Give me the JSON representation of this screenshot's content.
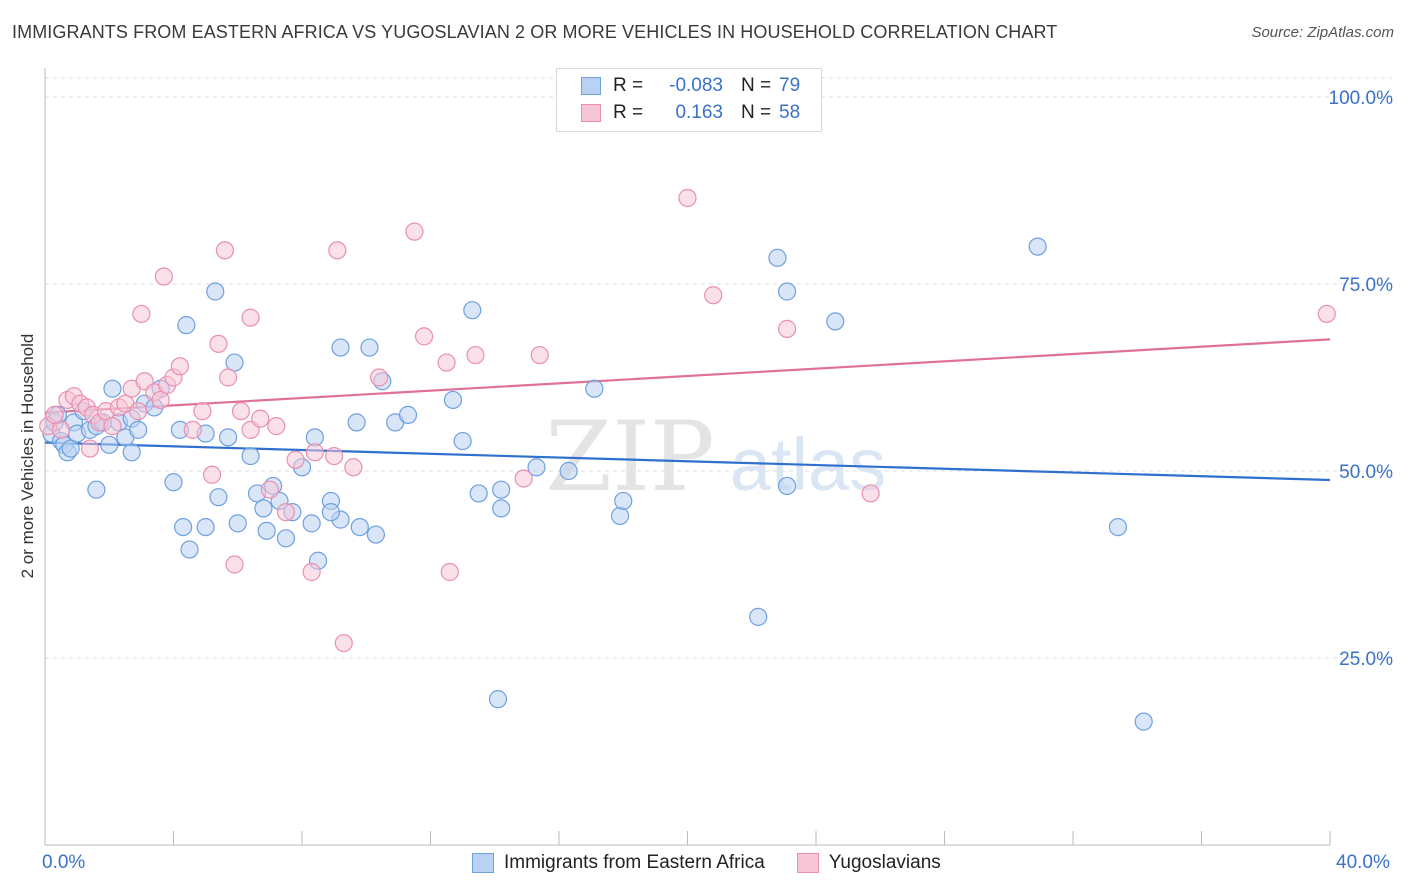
{
  "title": "IMMIGRANTS FROM EASTERN AFRICA VS YUGOSLAVIAN 2 OR MORE VEHICLES IN HOUSEHOLD CORRELATION CHART",
  "source": "Source: ZipAtlas.com",
  "watermark": {
    "zip": "ZIP",
    "atlas": "atlas"
  },
  "legend": {
    "rows": [
      {
        "r_label": "R =",
        "r_value": "-0.083",
        "n_label": "N =",
        "n_value": "79",
        "color": "#6fa0e0"
      },
      {
        "r_label": "R =",
        "r_value": "0.163",
        "n_label": "N =",
        "n_value": "58",
        "color": "#ea8fb0"
      }
    ]
  },
  "bottom_legend": {
    "series1": "Immigrants from Eastern Africa",
    "series2": "Yugoslavians"
  },
  "x_axis": {
    "min_label": "0.0%",
    "max_label": "40.0%"
  },
  "chart_data": {
    "type": "scatter",
    "title": "IMMIGRANTS FROM EASTERN AFRICA VS YUGOSLAVIAN 2 OR MORE VEHICLES IN HOUSEHOLD CORRELATION CHART",
    "xlabel": "",
    "ylabel": "2 or more Vehicles in Household",
    "xlim": [
      0,
      40
    ],
    "ylim": [
      0,
      105
    ],
    "yticks": [
      25,
      50,
      75,
      100
    ],
    "ytick_labels": [
      "25.0%",
      "50.0%",
      "75.0%",
      "100.0%"
    ],
    "grid": "horizontal dashed",
    "series": [
      {
        "name": "Immigrants from Eastern Africa",
        "color": "#6fa0e0",
        "fill": "#b9d1f3",
        "trend": {
          "x": [
            0,
            40
          ],
          "y": [
            53.8,
            48.8
          ]
        },
        "points": [
          [
            0.2,
            55.0
          ],
          [
            0.3,
            56.5
          ],
          [
            0.4,
            57.5
          ],
          [
            0.5,
            54.0
          ],
          [
            0.6,
            53.5
          ],
          [
            0.7,
            52.5
          ],
          [
            0.9,
            56.5
          ],
          [
            1.0,
            55.0
          ],
          [
            1.2,
            58.0
          ],
          [
            1.4,
            55.5
          ],
          [
            1.6,
            56.0
          ],
          [
            1.8,
            56.5
          ],
          [
            2.0,
            53.5
          ],
          [
            2.1,
            61.0
          ],
          [
            2.3,
            56.5
          ],
          [
            2.5,
            54.5
          ],
          [
            2.7,
            57.0
          ],
          [
            2.9,
            55.5
          ],
          [
            3.1,
            59.0
          ],
          [
            3.4,
            58.5
          ],
          [
            3.6,
            61.0
          ],
          [
            4.4,
            69.5
          ],
          [
            5.3,
            74.0
          ],
          [
            4.2,
            55.5
          ],
          [
            5.0,
            55.0
          ],
          [
            5.7,
            54.5
          ],
          [
            5.9,
            64.5
          ],
          [
            6.4,
            52.0
          ],
          [
            6.6,
            47.0
          ],
          [
            6.8,
            45.0
          ],
          [
            7.1,
            48.0
          ],
          [
            7.3,
            46.0
          ],
          [
            7.7,
            44.5
          ],
          [
            8.0,
            50.5
          ],
          [
            8.4,
            54.5
          ],
          [
            8.9,
            46.0
          ],
          [
            9.2,
            66.5
          ],
          [
            9.7,
            56.5
          ],
          [
            10.1,
            66.5
          ],
          [
            10.5,
            62.0
          ],
          [
            10.9,
            56.5
          ],
          [
            11.3,
            57.5
          ],
          [
            13.0,
            54.0
          ],
          [
            13.3,
            71.5
          ],
          [
            13.5,
            47.0
          ],
          [
            14.2,
            47.5
          ],
          [
            14.2,
            45.0
          ],
          [
            15.3,
            50.5
          ],
          [
            16.3,
            50.0
          ],
          [
            17.1,
            61.0
          ],
          [
            17.9,
            44.0
          ],
          [
            18.0,
            46.0
          ],
          [
            12.7,
            59.5
          ],
          [
            4.0,
            48.5
          ],
          [
            4.3,
            42.5
          ],
          [
            4.5,
            39.5
          ],
          [
            5.0,
            42.5
          ],
          [
            5.4,
            46.5
          ],
          [
            6.0,
            43.0
          ],
          [
            6.9,
            42.0
          ],
          [
            7.5,
            41.0
          ],
          [
            8.3,
            43.0
          ],
          [
            8.5,
            38.0
          ],
          [
            9.2,
            43.5
          ],
          [
            9.8,
            42.5
          ],
          [
            10.3,
            41.5
          ],
          [
            1.6,
            47.5
          ],
          [
            22.8,
            78.5
          ],
          [
            23.1,
            74.0
          ],
          [
            24.6,
            70.0
          ],
          [
            30.9,
            80.0
          ],
          [
            23.1,
            48.0
          ],
          [
            22.2,
            30.5
          ],
          [
            33.4,
            42.5
          ],
          [
            14.1,
            19.5
          ],
          [
            34.2,
            16.5
          ],
          [
            0.8,
            53.0
          ],
          [
            2.7,
            52.5
          ],
          [
            8.9,
            44.5
          ]
        ]
      },
      {
        "name": "Yugoslavians",
        "color": "#ea8fb0",
        "fill": "#f6c6d7",
        "trend": {
          "x": [
            0,
            40
          ],
          "y": [
            57.8,
            67.6
          ]
        },
        "points": [
          [
            0.1,
            56.0
          ],
          [
            0.3,
            57.5
          ],
          [
            0.5,
            55.5
          ],
          [
            0.7,
            59.5
          ],
          [
            0.9,
            60.0
          ],
          [
            1.1,
            59.0
          ],
          [
            1.3,
            58.5
          ],
          [
            1.5,
            57.5
          ],
          [
            1.7,
            56.5
          ],
          [
            1.9,
            58.0
          ],
          [
            2.1,
            56.0
          ],
          [
            2.3,
            58.5
          ],
          [
            2.5,
            59.0
          ],
          [
            2.7,
            61.0
          ],
          [
            2.9,
            58.0
          ],
          [
            3.1,
            62.0
          ],
          [
            3.4,
            60.5
          ],
          [
            3.6,
            59.5
          ],
          [
            3.8,
            61.5
          ],
          [
            4.0,
            62.5
          ],
          [
            4.2,
            64.0
          ],
          [
            4.6,
            55.5
          ],
          [
            4.9,
            58.0
          ],
          [
            5.4,
            67.0
          ],
          [
            5.7,
            62.5
          ],
          [
            6.1,
            58.0
          ],
          [
            6.4,
            55.5
          ],
          [
            6.7,
            57.0
          ],
          [
            7.2,
            56.0
          ],
          [
            7.8,
            51.5
          ],
          [
            8.4,
            52.5
          ],
          [
            9.0,
            52.0
          ],
          [
            9.6,
            50.5
          ],
          [
            10.4,
            62.5
          ],
          [
            11.8,
            68.0
          ],
          [
            12.5,
            64.5
          ],
          [
            3.0,
            71.0
          ],
          [
            3.7,
            76.0
          ],
          [
            5.6,
            79.5
          ],
          [
            6.4,
            70.5
          ],
          [
            9.1,
            79.5
          ],
          [
            11.5,
            82.0
          ],
          [
            13.4,
            65.5
          ],
          [
            15.4,
            65.5
          ],
          [
            20.0,
            86.5
          ],
          [
            20.8,
            73.5
          ],
          [
            23.1,
            69.0
          ],
          [
            39.9,
            71.0
          ],
          [
            25.7,
            47.0
          ],
          [
            14.9,
            49.0
          ],
          [
            5.2,
            49.5
          ],
          [
            5.9,
            37.5
          ],
          [
            7.0,
            47.5
          ],
          [
            7.5,
            44.5
          ],
          [
            8.3,
            36.5
          ],
          [
            9.3,
            27.0
          ],
          [
            12.6,
            36.5
          ],
          [
            1.4,
            53.0
          ]
        ]
      }
    ]
  }
}
